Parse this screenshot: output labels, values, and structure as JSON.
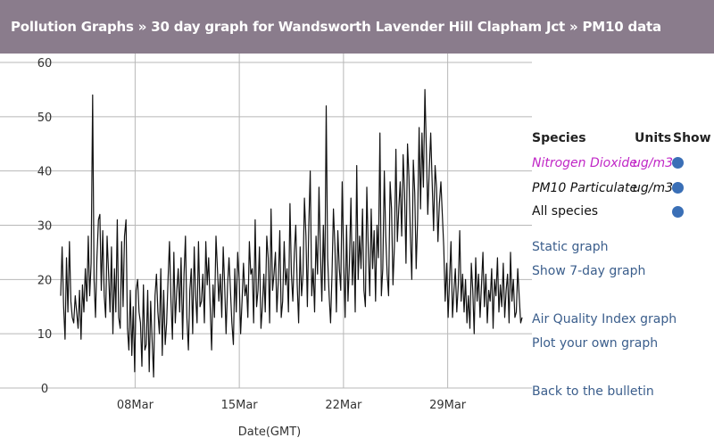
{
  "header": {
    "title": "Pollution Graphs » 30 day graph for Wandsworth Lavender Hill Clapham Jct » PM10 data"
  },
  "colors": {
    "header_bg": "#8a7c8c",
    "line": "#111111",
    "grid": "#b8b8b8",
    "dot": "#3a6fb6",
    "nitrogen": "#c026c6",
    "link": "#3b5e8c"
  },
  "species_table": {
    "header": {
      "species": "Species",
      "units": "Units",
      "show": "Show"
    },
    "rows": [
      {
        "name": "Nitrogen Dioxide",
        "units": "ug/m3",
        "color": "#c026c6"
      },
      {
        "name": "PM10 Particulate",
        "units": "ug/m3",
        "color": "#111111"
      },
      {
        "name": "All species",
        "units": "",
        "color": "#111111"
      }
    ]
  },
  "links": {
    "static_graph": "Static graph",
    "seven_day": "Show 7-day graph",
    "aqi_graph": "Air Quality Index graph",
    "plot_own": "Plot your own graph",
    "back": "Back to the bulletin"
  },
  "chart_data": {
    "type": "line",
    "title": "",
    "xlabel": "Date(GMT)",
    "ylabel": "",
    "ylim": [
      0,
      60
    ],
    "y_ticks": [
      "0",
      "10",
      "20",
      "30",
      "40",
      "50",
      "60"
    ],
    "x_ticks": [
      "08Mar",
      "15Mar",
      "22Mar",
      "29Mar"
    ],
    "x_tick_days": [
      5,
      12,
      19,
      26
    ],
    "xlim_days": [
      0,
      31
    ],
    "grid": true,
    "series": [
      {
        "color": "#111111",
        "values": [
          17,
          26,
          15,
          9,
          24,
          14,
          27,
          16,
          13,
          12,
          17,
          14,
          11,
          18,
          9,
          19,
          14,
          22,
          16,
          28,
          17,
          23,
          54,
          20,
          13,
          24,
          31,
          32,
          18,
          29,
          17,
          13,
          28,
          21,
          14,
          26,
          10,
          22,
          14,
          31,
          13,
          11,
          27,
          15,
          28,
          31,
          11,
          7,
          18,
          6,
          15,
          3,
          18,
          20,
          14,
          12,
          4,
          19,
          7,
          8,
          18,
          3,
          16,
          9,
          2,
          17,
          21,
          14,
          10,
          22,
          6,
          18,
          8,
          12,
          20,
          27,
          16,
          9,
          25,
          12,
          18,
          22,
          14,
          24,
          9,
          21,
          28,
          13,
          7,
          18,
          22,
          10,
          26,
          17,
          12,
          27,
          15,
          16,
          21,
          12,
          27,
          19,
          24,
          15,
          7,
          19,
          13,
          28,
          22,
          16,
          21,
          13,
          26,
          19,
          10,
          19,
          24,
          18,
          12,
          8,
          22,
          14,
          25,
          20,
          10,
          16,
          23,
          17,
          19,
          13,
          27,
          21,
          22,
          12,
          31,
          15,
          18,
          26,
          11,
          15,
          21,
          14,
          28,
          24,
          12,
          33,
          18,
          21,
          25,
          14,
          20,
          29,
          13,
          16,
          27,
          19,
          22,
          14,
          34,
          21,
          16,
          25,
          30,
          19,
          12,
          26,
          17,
          21,
          35,
          28,
          15,
          30,
          40,
          17,
          22,
          14,
          28,
          21,
          37,
          25,
          16,
          30,
          18,
          52,
          24,
          17,
          12,
          21,
          33,
          26,
          14,
          29,
          22,
          18,
          38,
          24,
          13,
          30,
          16,
          23,
          35,
          19,
          27,
          14,
          41,
          20,
          28,
          22,
          33,
          18,
          15,
          37,
          25,
          17,
          33,
          22,
          29,
          16,
          30,
          24,
          47,
          17,
          22,
          40,
          28,
          21,
          17,
          38,
          33,
          19,
          26,
          44,
          27,
          33,
          38,
          28,
          43,
          36,
          23,
          45,
          39,
          28,
          20,
          42,
          36,
          22,
          31,
          48,
          33,
          47,
          37,
          55,
          44,
          32,
          40,
          47,
          38,
          29,
          41,
          37,
          27,
          34,
          38,
          32,
          26,
          16,
          23,
          13,
          20,
          27,
          13,
          18,
          22,
          14,
          19,
          29,
          16,
          21,
          14,
          20,
          12,
          17,
          11,
          23,
          18,
          10,
          24,
          16,
          21,
          13,
          19,
          25,
          15,
          21,
          12,
          18,
          16,
          22,
          11,
          20,
          17,
          24,
          14,
          19,
          15,
          23,
          13,
          18,
          21,
          12,
          25,
          16,
          20,
          13,
          14,
          22,
          17,
          12,
          13
        ]
      }
    ]
  }
}
